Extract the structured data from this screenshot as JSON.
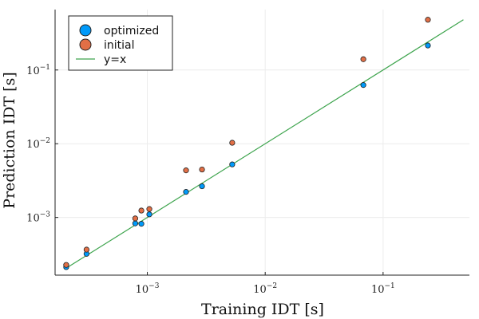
{
  "chart_data": {
    "type": "scatter",
    "xscale": "log",
    "yscale": "log",
    "xlabel": "Training IDT [s]",
    "ylabel": "Prediction IDT [s]",
    "xlim": [
      0.000165,
      0.54
    ],
    "ylim": [
      0.000165,
      0.66
    ],
    "xticks": [
      0.001,
      0.01,
      0.1
    ],
    "yticks": [
      0.001,
      0.01,
      0.1
    ],
    "grid": true,
    "legend_position": "top-left",
    "series": [
      {
        "name": "optimized",
        "kind": "scatter",
        "color": "#009AFA",
        "x": [
          0.000205,
          0.000305,
          0.00079,
          0.00089,
          0.00104,
          0.00213,
          0.00291,
          0.00525,
          0.068,
          0.24
        ],
        "y": [
          0.000212,
          0.000321,
          0.00083,
          0.00082,
          0.0011,
          0.00222,
          0.00265,
          0.00524,
          0.0625,
          0.215
        ]
      },
      {
        "name": "initial",
        "kind": "scatter",
        "color": "#E26F46",
        "x": [
          0.000205,
          0.000305,
          0.00079,
          0.00089,
          0.00104,
          0.00213,
          0.00291,
          0.00525,
          0.068,
          0.24
        ],
        "y": [
          0.000227,
          0.000366,
          0.00097,
          0.00124,
          0.0013,
          0.00435,
          0.00447,
          0.0103,
          0.14,
          0.48
        ]
      },
      {
        "name": "y=x",
        "kind": "line",
        "color": "#3DA44D",
        "x": [
          0.000205,
          0.48
        ],
        "y": [
          0.000205,
          0.48
        ]
      }
    ]
  }
}
